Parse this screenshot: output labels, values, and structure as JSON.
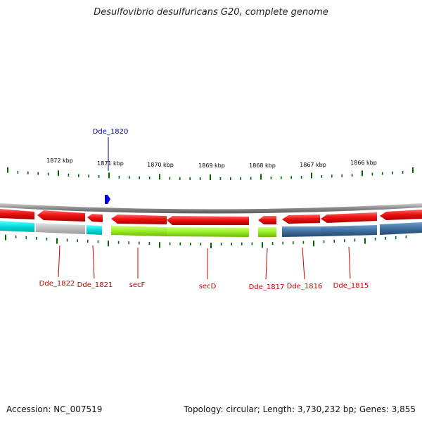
{
  "title": "Desulfovibrio desulfuricans G20, complete genome",
  "footer": {
    "accession": "Accession: NC_007519",
    "summary": "Topology: circular; Length: 3,730,232 bp; Genes: 3,855"
  },
  "ruler": {
    "labels": [
      "1872 kbp",
      "1871 kbp",
      "1870 kbp",
      "1869 kbp",
      "1868 kbp",
      "1867 kbp",
      "1866 kbp"
    ],
    "color": "#006600"
  },
  "features": [
    {
      "name": "Dde_1822",
      "color": "#cc0000"
    },
    {
      "name": "Dde_1821",
      "color": "#cc0000"
    },
    {
      "name": "secF",
      "color": "#cc0000"
    },
    {
      "name": "secD",
      "color": "#cc0000"
    },
    {
      "name": "Dde_1817",
      "color": "#cc0000"
    },
    {
      "name": "Dde_1816",
      "color": "#cc0000"
    },
    {
      "name": "Dde_1815",
      "color": "#cc0000"
    }
  ],
  "marker": {
    "name": "Dde_1820",
    "color": "#0000aa"
  },
  "colors": {
    "gene": "#ee1111",
    "backbone": "#8a8a8a",
    "cog_cyan": "#00dddd",
    "cog_gray": "#bbbbbb",
    "cog_green": "#99ee22",
    "cog_blue": "#3d6f9f",
    "marker_blue": "#0000ee"
  }
}
